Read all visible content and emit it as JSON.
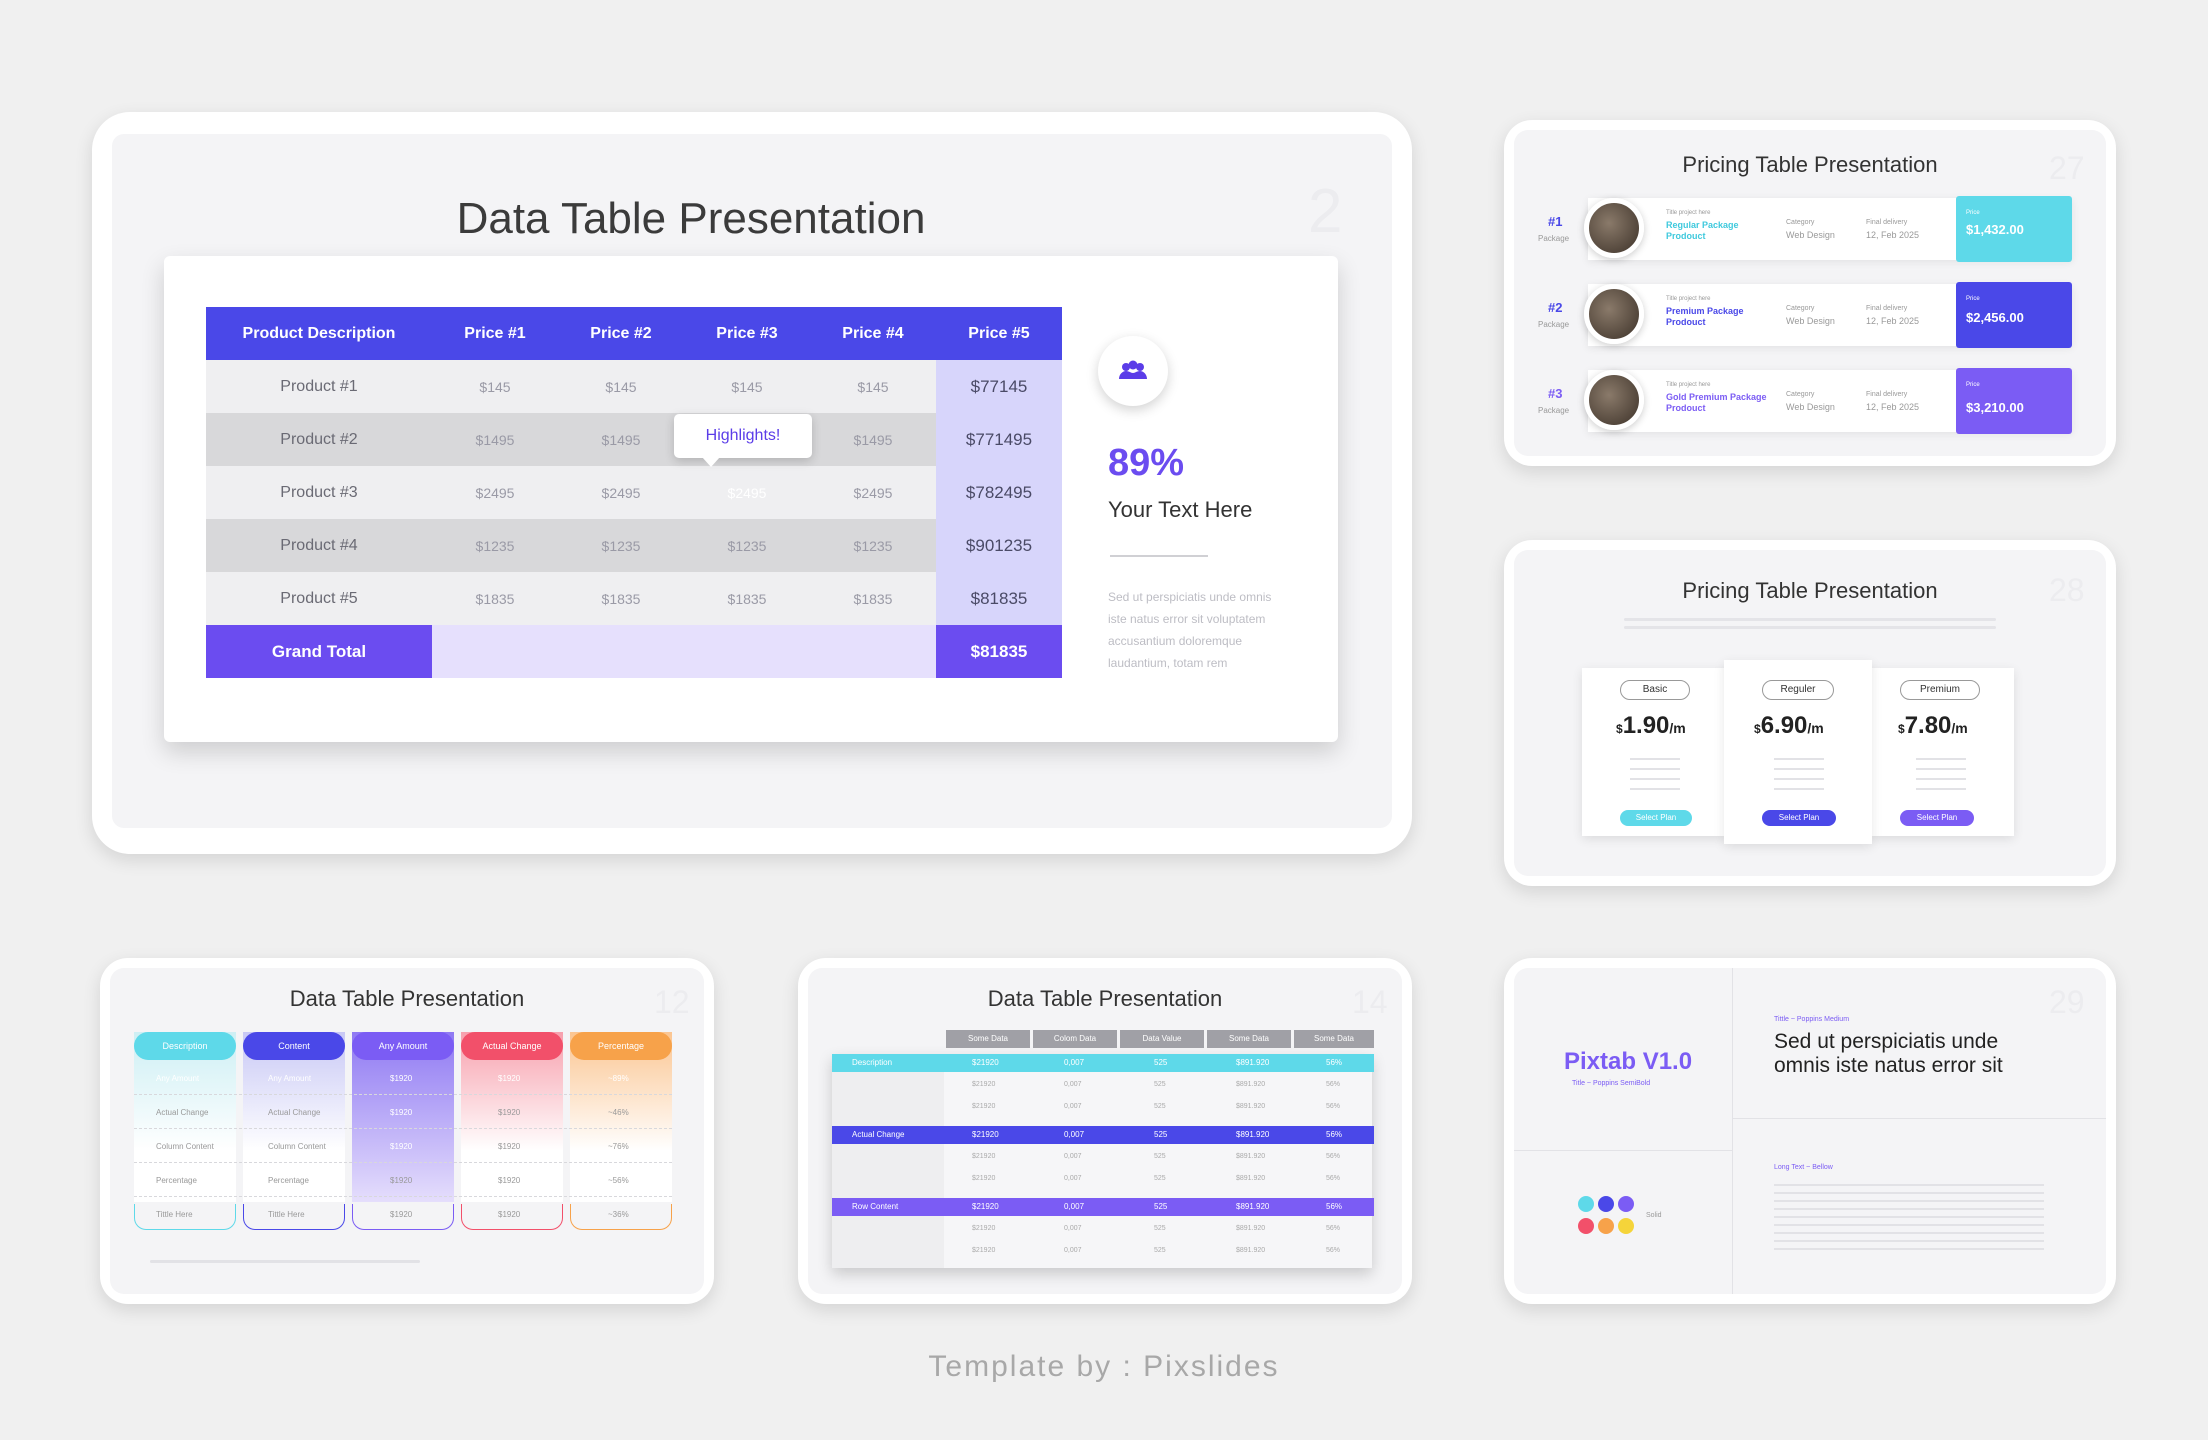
{
  "main_slide": {
    "title": "Data Table Presentation",
    "number": "2",
    "columns": [
      "Product Description",
      "Price #1",
      "Price #2",
      "Price #3",
      "Price #4",
      "Price #5"
    ],
    "rows": [
      [
        "Product #1",
        "$145",
        "$145",
        "$145",
        "$145",
        "$77145"
      ],
      [
        "Product #2",
        "$1495",
        "$1495",
        "",
        "$1495",
        "$771495"
      ],
      [
        "Product #3",
        "$2495",
        "$2495",
        "$2495",
        "$2495",
        "$782495"
      ],
      [
        "Product #4",
        "$1235",
        "$1235",
        "$1235",
        "$1235",
        "$901235"
      ],
      [
        "Product #5",
        "$1835",
        "$1835",
        "$1835",
        "$1835",
        "$81835"
      ]
    ],
    "grand_total_label": "Grand Total",
    "grand_total_value": "$81835",
    "tooltip": "Highlights!",
    "percent": "89%",
    "text_title": "Your Text Here",
    "body": [
      "Sed ut perspiciatis unde omnis",
      "iste natus error sit voluptatem",
      "accusantium doloremque",
      "laudantium, totam rem"
    ],
    "icon": "people-icon"
  },
  "pricing_27": {
    "title": "Pricing Table Presentation",
    "number": "27",
    "rows": [
      {
        "rank": "#1",
        "rank_sub": "Package",
        "small": "Title project here",
        "name": "Regular Package Prodouct",
        "cat_label": "Category",
        "cat": "Web Design",
        "date_label": "Final delivery",
        "date": "12, Feb 2025",
        "price_label": "Price",
        "price": "$1,432.00",
        "color": "#5ed9e9"
      },
      {
        "rank": "#2",
        "rank_sub": "Package",
        "small": "Title project here",
        "name": "Premium Package Prodouct",
        "cat_label": "Category",
        "cat": "Web Design",
        "date_label": "Final delivery",
        "date": "12, Feb 2025",
        "price_label": "Price",
        "price": "$2,456.00",
        "color": "#4a48e8"
      },
      {
        "rank": "#3",
        "rank_sub": "Package",
        "small": "Title project here",
        "name": "Gold Premium Package Prodouct",
        "cat_label": "Category",
        "cat": "Web Design",
        "date_label": "Final delivery",
        "date": "12, Feb 2025",
        "price_label": "Price",
        "price": "$3,210.00",
        "color": "#7b5cf4"
      }
    ]
  },
  "pricing_28": {
    "title": "Pricing Table Presentation",
    "number": "28",
    "plans": [
      {
        "name": "Basic",
        "currency": "$",
        "amount": "1.90",
        "unit": "/m",
        "button": "Select Plan",
        "color": "#5ed9e9"
      },
      {
        "name": "Reguler",
        "currency": "$",
        "amount": "6.90",
        "unit": "/m",
        "button": "Select Plan",
        "color": "#4a48e8"
      },
      {
        "name": "Premium",
        "currency": "$",
        "amount": "7.80",
        "unit": "/m",
        "button": "Select Plan",
        "color": "#7b5cf4"
      }
    ]
  },
  "data_12": {
    "title": "Data Table Presentation",
    "number": "12",
    "headers": [
      {
        "label": "Description",
        "color": "#5ed9e9"
      },
      {
        "label": "Content",
        "color": "#4a48e8"
      },
      {
        "label": "Any Amount",
        "color": "#7b5cf4"
      },
      {
        "label": "Actual Change",
        "color": "#f2506a"
      },
      {
        "label": "Percentage",
        "color": "#f7a24a"
      }
    ],
    "rows": [
      [
        "Any Amount",
        "Any Amount",
        "$1920",
        "$1920",
        "~89%"
      ],
      [
        "Actual Change",
        "Actual Change",
        "$1920",
        "$1920",
        "~46%"
      ],
      [
        "Column Content",
        "Column Content",
        "$1920",
        "$1920",
        "~76%"
      ],
      [
        "Percentage",
        "Percentage",
        "$1920",
        "$1920",
        "~56%"
      ],
      [
        "Tittle Here",
        "Tittle Here",
        "$1920",
        "$1920",
        "~36%"
      ]
    ]
  },
  "data_14": {
    "title": "Data Table Presentation",
    "number": "14",
    "headers": [
      "Some Data",
      "Colom Data",
      "Data Value",
      "Some Data",
      "Some Data"
    ],
    "groups": [
      {
        "label": "Description",
        "color": "#5ed9e9",
        "values": [
          "$21920",
          "0,007",
          "525",
          "$891.920",
          "56%"
        ]
      },
      {
        "label": "Actual Change",
        "color": "#4a48e8",
        "values": [
          "$21920",
          "0,007",
          "525",
          "$891.920",
          "56%"
        ]
      },
      {
        "label": "Row Content",
        "color": "#7b5cf4",
        "values": [
          "$21920",
          "0,007",
          "525",
          "$891.920",
          "56%"
        ]
      }
    ],
    "sub_values": [
      "$21920",
      "0,007",
      "525",
      "$891.920",
      "56%"
    ]
  },
  "brand_29": {
    "number": "29",
    "brand": "Pixtab V1.0",
    "brand_sub": "Title  ~ Poppins SemiBold",
    "small_label": "Tittle  ~ Poppins Medium",
    "headline": [
      "Sed ut perspiciatis unde",
      "omnis iste natus error sit"
    ],
    "long_label": "Long Text ~ Bellow",
    "solid_label": "Solid",
    "colors": [
      "#5ed9e9",
      "#4a48e8",
      "#7b5cf4",
      "#f2506a",
      "#f7a24a",
      "#f5d43a"
    ]
  },
  "footer": "Template by : Pixslides"
}
